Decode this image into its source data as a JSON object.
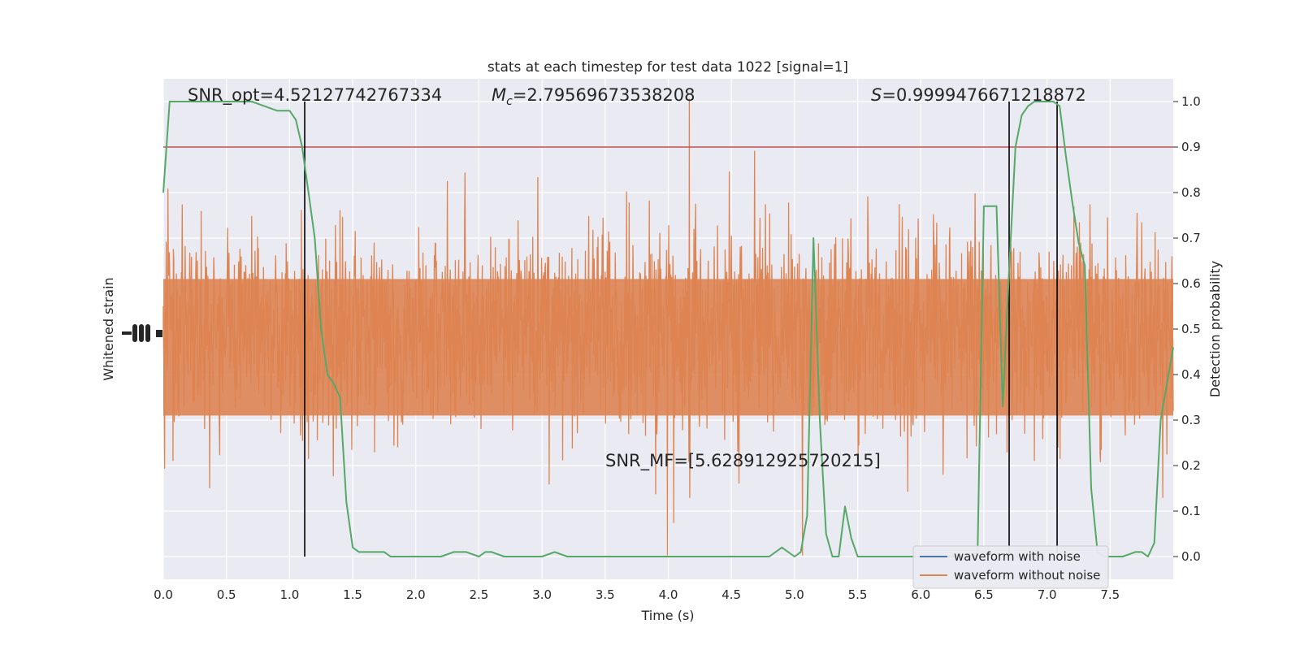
{
  "chart_data": {
    "type": "line",
    "title": "stats at each timestep for test data 1022 [signal=1]",
    "xlabel": "Time (s)",
    "ylabel_left": "Whitened strain",
    "ylabel_right": "Detection probability",
    "xlim": [
      0.0,
      8.0
    ],
    "ylim_right": [
      -0.05,
      1.05
    ],
    "x_ticks": [
      "0.0",
      "0.5",
      "1.0",
      "1.5",
      "2.0",
      "2.5",
      "3.0",
      "3.5",
      "4.0",
      "4.5",
      "5.0",
      "5.5",
      "6.0",
      "6.5",
      "7.0",
      "7.5"
    ],
    "right_ticks": [
      "0.0",
      "0.1",
      "0.2",
      "0.3",
      "0.4",
      "0.5",
      "0.6",
      "0.7",
      "0.8",
      "0.9",
      "1.0"
    ],
    "grid": true,
    "legend_position": "lower-right",
    "annotations": {
      "snr_opt": "SNR_opt=4.52127742767334",
      "mc_symbol": "M",
      "mc_sub": "c",
      "mc_value": "=2.79569673538208",
      "s_symbol": "S",
      "s_value": "=0.9999476671218872",
      "snr_mf": "SNR_MF=[5.628912925720215]"
    },
    "threshold": 0.9,
    "event_markers": [
      1.12,
      6.7,
      7.08
    ],
    "series": [
      {
        "name": "waveform with noise",
        "color": "#4c72b0"
      },
      {
        "name": "waveform without noise",
        "color": "#dd8452"
      }
    ],
    "detection_probability": {
      "color": "#55a868",
      "x": [
        0.0,
        0.05,
        0.1,
        0.2,
        0.3,
        0.4,
        0.5,
        0.6,
        0.7,
        0.8,
        0.9,
        0.95,
        1.0,
        1.05,
        1.1,
        1.15,
        1.2,
        1.25,
        1.3,
        1.35,
        1.4,
        1.45,
        1.5,
        1.55,
        1.6,
        1.65,
        1.7,
        1.75,
        1.8,
        1.85,
        2.0,
        2.2,
        2.3,
        2.4,
        2.5,
        2.55,
        2.6,
        2.7,
        2.8,
        2.9,
        3.0,
        3.1,
        3.2,
        3.5,
        3.7,
        3.8,
        3.9,
        4.0,
        4.2,
        4.5,
        4.7,
        4.8,
        4.9,
        5.0,
        5.05,
        5.1,
        5.15,
        5.2,
        5.25,
        5.3,
        5.35,
        5.4,
        5.45,
        5.5,
        5.6,
        5.8,
        6.0,
        6.2,
        6.4,
        6.45,
        6.5,
        6.55,
        6.6,
        6.65,
        6.7,
        6.75,
        6.8,
        6.85,
        6.9,
        7.0,
        7.05,
        7.1,
        7.15,
        7.2,
        7.25,
        7.3,
        7.35,
        7.4,
        7.45,
        7.5,
        7.6,
        7.7,
        7.75,
        7.8,
        7.85,
        7.9,
        8.0
      ],
      "y": [
        0.8,
        1.0,
        1.0,
        1.0,
        1.0,
        1.0,
        1.0,
        1.0,
        1.0,
        0.99,
        0.98,
        0.98,
        0.98,
        0.96,
        0.9,
        0.8,
        0.7,
        0.5,
        0.4,
        0.38,
        0.35,
        0.12,
        0.02,
        0.01,
        0.01,
        0.01,
        0.01,
        0.01,
        0.0,
        0.0,
        0.0,
        0.0,
        0.01,
        0.01,
        0.0,
        0.01,
        0.01,
        0.0,
        0.0,
        0.0,
        0.0,
        0.01,
        0.0,
        0.0,
        0.0,
        0.0,
        0.0,
        0.0,
        0.0,
        0.0,
        0.0,
        0.0,
        0.02,
        0.0,
        0.01,
        0.09,
        0.7,
        0.3,
        0.05,
        0.0,
        0.0,
        0.11,
        0.04,
        0.0,
        0.0,
        0.0,
        0.0,
        0.0,
        0.0,
        0.01,
        0.77,
        0.77,
        0.77,
        0.33,
        0.63,
        0.9,
        0.97,
        0.99,
        1.0,
        1.0,
        1.0,
        0.99,
        0.88,
        0.78,
        0.69,
        0.64,
        0.15,
        0.01,
        0.0,
        0.0,
        0.0,
        0.01,
        0.01,
        0.0,
        0.03,
        0.3,
        0.46
      ]
    }
  }
}
